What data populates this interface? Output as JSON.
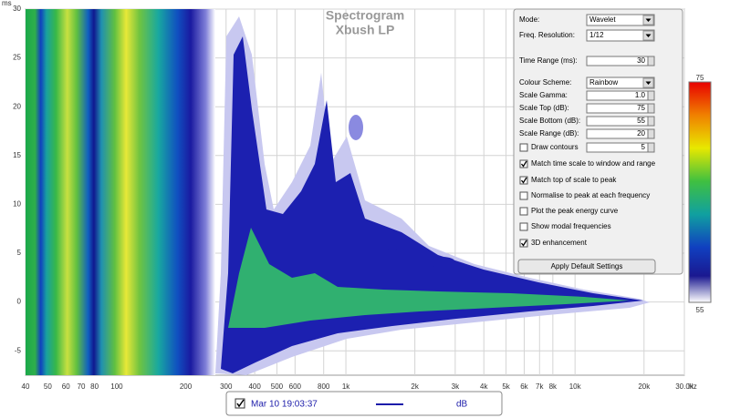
{
  "chart_data": {
    "type": "spectrogram",
    "title": "Spectrogram",
    "subtitle": "Xbush LP",
    "x_unit": "Hz",
    "y_unit": "ms",
    "x_log": true,
    "grid": true,
    "xlim": [
      40,
      30000
    ],
    "ylim": [
      -7.5,
      30
    ],
    "xticks": [
      40,
      50,
      60,
      70,
      80,
      100,
      200,
      300,
      400,
      500,
      600,
      800,
      {
        "value": 1000,
        "label": "1k"
      },
      {
        "value": 2000,
        "label": "2k"
      },
      {
        "value": 3000,
        "label": "3k"
      },
      {
        "value": 4000,
        "label": "4k"
      },
      {
        "value": 5000,
        "label": "5k"
      },
      {
        "value": 6000,
        "label": "6k"
      },
      {
        "value": 7000,
        "label": "7k"
      },
      {
        "value": 8000,
        "label": "8k"
      },
      {
        "value": 10000,
        "label": "10k"
      },
      {
        "value": 20000,
        "label": "20k"
      },
      {
        "value": 30000,
        "label": "30.0k"
      }
    ],
    "yticks": [
      -5,
      0,
      5,
      10,
      15,
      20,
      25,
      30
    ],
    "colorbar": {
      "lim": [
        55,
        75
      ],
      "ticks": [
        55,
        75
      ]
    }
  },
  "settings": {
    "rows": [
      {
        "kind": "dropdown",
        "label": "Mode:",
        "value": "Wavelet"
      },
      {
        "kind": "dropdown",
        "label": "Freq. Resolution:",
        "value": "1/12"
      },
      {
        "kind": "spin",
        "label": "Time Range (ms):",
        "value": "30"
      },
      {
        "kind": "dropdown",
        "label": "Colour Scheme:",
        "value": "Rainbow"
      },
      {
        "kind": "spin",
        "label": "Scale Gamma:",
        "value": "1.0"
      },
      {
        "kind": "spin",
        "label": "Scale Top (dB):",
        "value": "75"
      },
      {
        "kind": "spin",
        "label": "Scale Bottom (dB):",
        "value": "55"
      },
      {
        "kind": "spin",
        "label": "Scale Range (dB):",
        "value": "20"
      },
      {
        "kind": "checkspin",
        "label": "Draw contours",
        "checked": false,
        "value": "5"
      },
      {
        "kind": "checkbox",
        "label": "Match time scale to window and range",
        "checked": true
      },
      {
        "kind": "checkbox",
        "label": "Match top of scale to peak",
        "checked": true
      },
      {
        "kind": "checkbox",
        "label": "Normalise to peak at each frequency",
        "checked": false
      },
      {
        "kind": "checkbox",
        "label": "Plot the peak energy curve",
        "checked": false
      },
      {
        "kind": "checkbox",
        "label": "Show modal frequencies",
        "checked": false
      },
      {
        "kind": "checkbox",
        "label": "3D enhancement",
        "checked": true
      }
    ],
    "button": "Apply Default Settings"
  },
  "legend": {
    "checked": true,
    "name": "Mar 10 19:03:37",
    "unit": "dB",
    "color": "#1c1caa"
  }
}
